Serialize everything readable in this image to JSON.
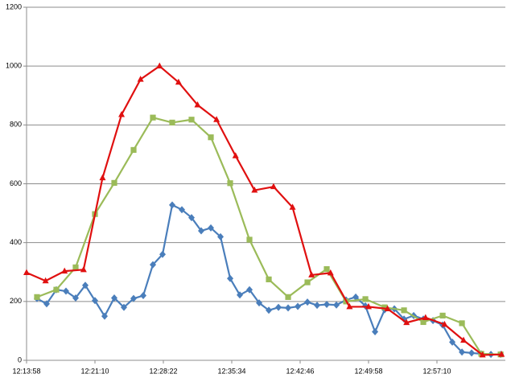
{
  "chart_data": {
    "type": "line",
    "xlim": [
      44038,
      47062
    ],
    "xticks": [
      {
        "value": 44038,
        "label": "12:13:58"
      },
      {
        "value": 44470,
        "label": "12:21:10"
      },
      {
        "value": 44902,
        "label": "12:28:22"
      },
      {
        "value": 45334,
        "label": "12:35:34"
      },
      {
        "value": 45766,
        "label": "12:42:46"
      },
      {
        "value": 46198,
        "label": "12:49:58"
      },
      {
        "value": 46630,
        "label": "12:57:10"
      }
    ],
    "ylim": [
      0,
      1200
    ],
    "yticks": [
      0,
      200,
      400,
      600,
      800,
      1000,
      1200
    ],
    "grid": true,
    "series": [
      {
        "color": "#4a7ebb",
        "marker": "diamond",
        "x": [
          44104,
          44165,
          44226,
          44287,
          44348,
          44409,
          44470,
          44531,
          44592,
          44653,
          44714,
          44775,
          44836,
          44897,
          44958,
          45019,
          45080,
          45141,
          45202,
          45263,
          45324,
          45385,
          45446,
          45507,
          45568,
          45629,
          45690,
          45751,
          45812,
          45873,
          45934,
          45995,
          46056,
          46117,
          46178,
          46239,
          46300,
          46361,
          46422,
          46483,
          46544,
          46605,
          46666,
          46727,
          46788,
          46849,
          46910,
          46971,
          47032
        ],
        "values": [
          210,
          192,
          240,
          235,
          212,
          255,
          203,
          150,
          212,
          180,
          210,
          220,
          325,
          360,
          528,
          512,
          485,
          440,
          450,
          420,
          278,
          222,
          240,
          195,
          170,
          180,
          178,
          183,
          198,
          187,
          190,
          188,
          205,
          215,
          185,
          97,
          172,
          175,
          140,
          152,
          140,
          135,
          120,
          62,
          28,
          25,
          22,
          20,
          20
        ]
      },
      {
        "color": "#9bbb59",
        "marker": "square",
        "x": [
          44104,
          44226,
          44348,
          44470,
          44592,
          44714,
          44836,
          44958,
          45080,
          45202,
          45324,
          45446,
          45568,
          45690,
          45812,
          45934,
          46056,
          46178,
          46300,
          46422,
          46544,
          46666,
          46788,
          46910,
          47032
        ],
        "values": [
          215,
          240,
          316,
          497,
          603,
          715,
          825,
          808,
          818,
          758,
          602,
          410,
          275,
          215,
          265,
          310,
          200,
          208,
          180,
          170,
          130,
          152,
          126,
          22,
          20
        ]
      },
      {
        "color": "#e01010",
        "marker": "triangle",
        "x": [
          44038,
          44158,
          44278,
          44398,
          44518,
          44638,
          44758,
          44878,
          44998,
          45118,
          45238,
          45358,
          45478,
          45598,
          45718,
          45838,
          45958,
          46078,
          46198,
          46318,
          46438,
          46558,
          46678,
          46798,
          46918,
          47038
        ],
        "values": [
          298,
          270,
          303,
          308,
          620,
          835,
          955,
          1000,
          945,
          868,
          818,
          695,
          578,
          590,
          520,
          290,
          297,
          182,
          182,
          175,
          128,
          145,
          122,
          68,
          18,
          20
        ]
      }
    ]
  }
}
